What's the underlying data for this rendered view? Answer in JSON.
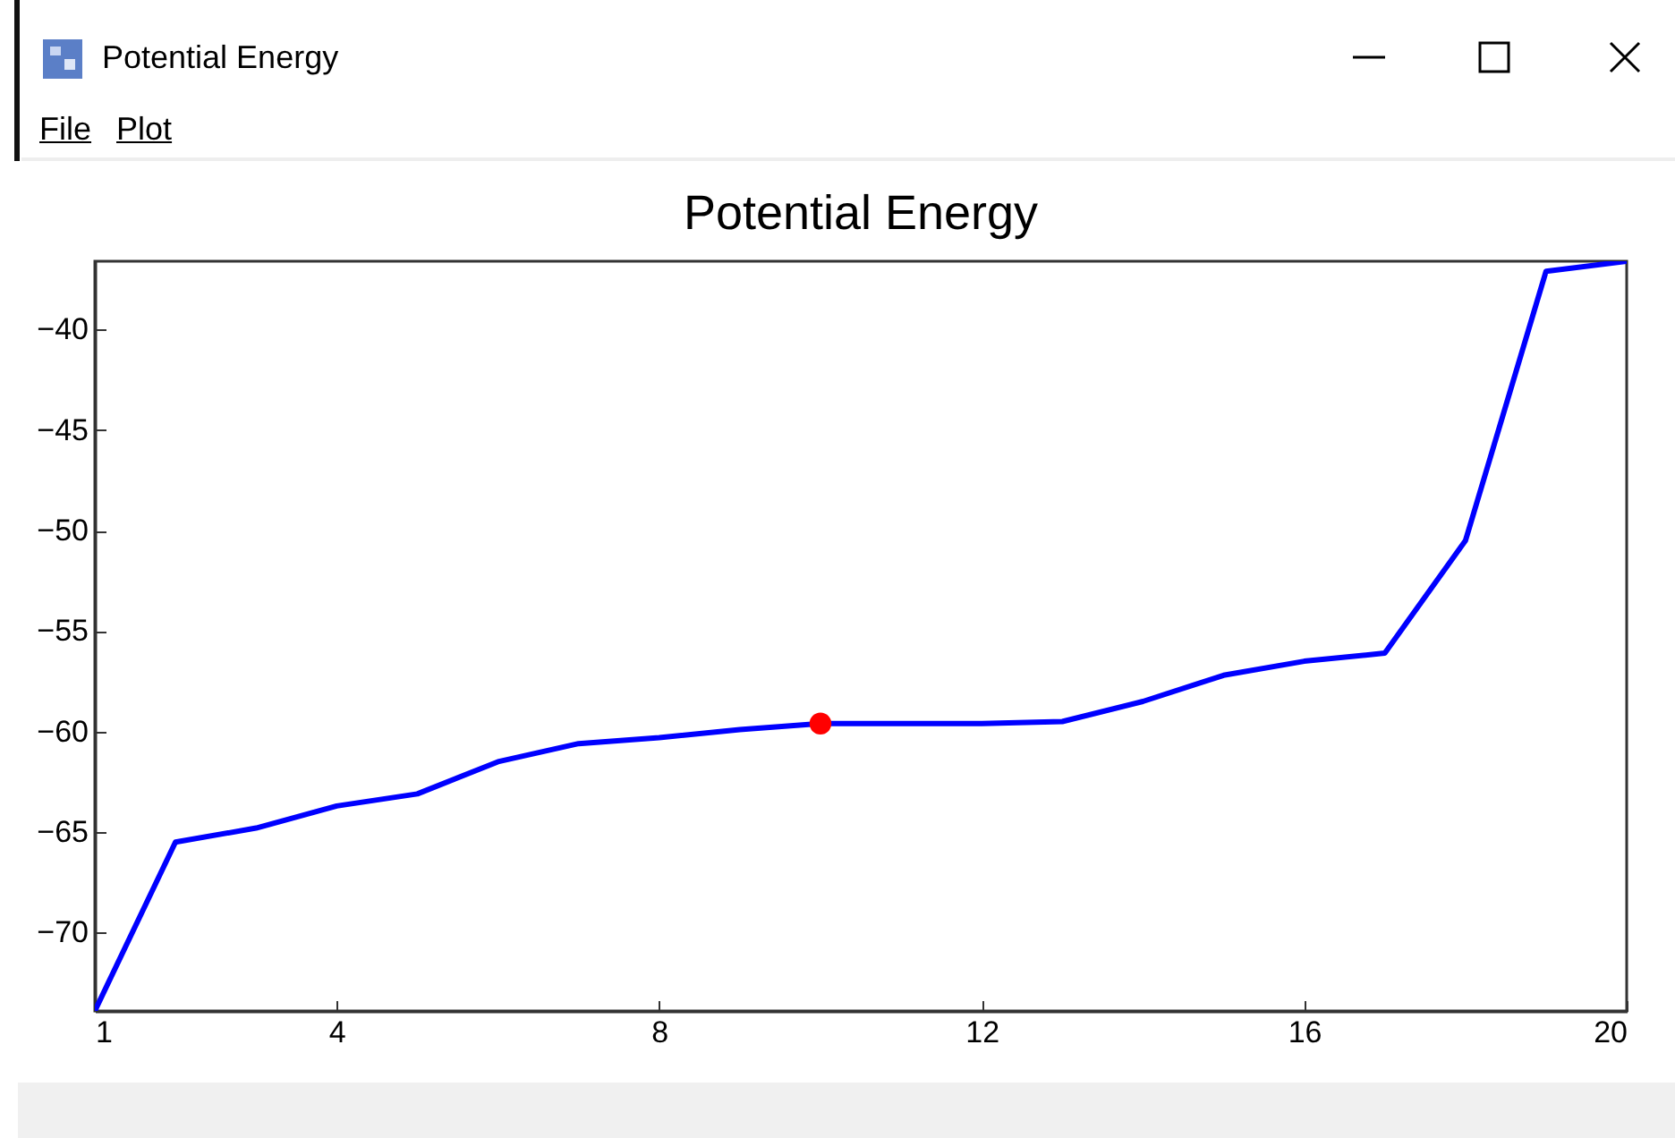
{
  "chart_data": {
    "type": "line",
    "title": "Potential Energy",
    "annotations": [
      "Potential Energy",
      "File",
      "Plot"
    ],
    "x": [
      1,
      2,
      3,
      4,
      5,
      6,
      7,
      8,
      9,
      10,
      11,
      12,
      13,
      14,
      15,
      16,
      17,
      18,
      19,
      20
    ],
    "series": [
      {
        "color": "#0000ff",
        "values": [
          -73.9,
          -65.5,
          -64.8,
          -63.7,
          -63.1,
          -61.5,
          -60.6,
          -60.3,
          -59.9,
          -59.6,
          -59.6,
          -59.6,
          -59.5,
          -58.5,
          -57.2,
          -56.5,
          -56.1,
          -50.5,
          -37.1,
          -36.6
        ]
      },
      {
        "type": "scatter",
        "color": "#ff0000",
        "marker": "circle",
        "x": [
          10
        ],
        "values": [
          -59.6
        ]
      }
    ],
    "xlim": [
      1,
      20
    ],
    "xticks": [
      1,
      4,
      8,
      12,
      16,
      20
    ],
    "ylim": [
      -73.9,
      -36.6
    ],
    "yticks": [
      -70,
      -65,
      -60,
      -55,
      -50,
      -45,
      -40
    ],
    "grid": false
  }
}
